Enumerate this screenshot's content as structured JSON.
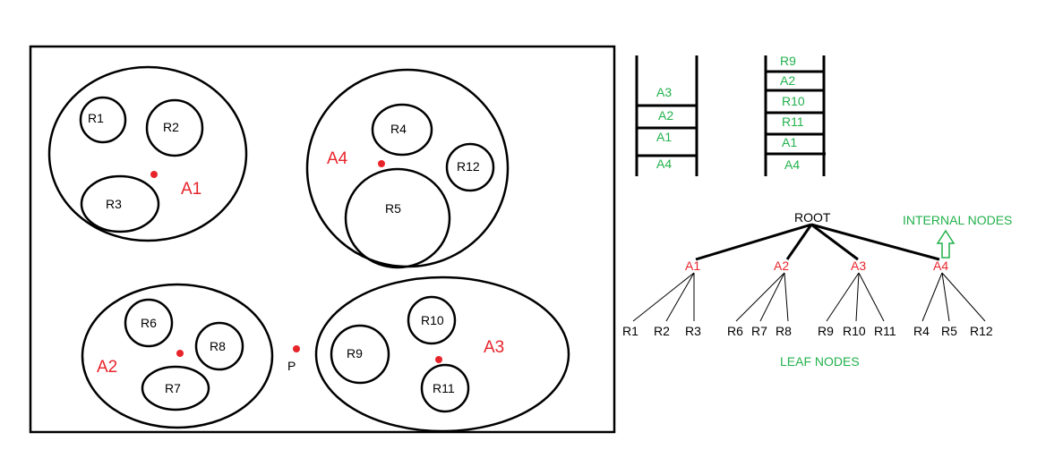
{
  "regions": {
    "r1": "R1",
    "r2": "R2",
    "r3": "R3",
    "r4": "R4",
    "r5": "R5",
    "r6": "R6",
    "r7": "R7",
    "r8": "R8",
    "r9": "R9",
    "r10": "R10",
    "r11": "R11",
    "r12": "R12"
  },
  "areas": {
    "a1": "A1",
    "a2": "A2",
    "a3": "A3",
    "a4": "A4"
  },
  "point": "P",
  "stack1": [
    "A3",
    "A2",
    "A1",
    "A4"
  ],
  "stack2": [
    "R9",
    "A2",
    "R10",
    "R11",
    "A1",
    "A4"
  ],
  "tree": {
    "root": "ROOT",
    "internal": [
      "A1",
      "A2",
      "A3",
      "A4"
    ],
    "leaves": [
      "R1",
      "R2",
      "R3",
      "R6",
      "R7",
      "R8",
      "R9",
      "R10",
      "R11",
      "R4",
      "R5",
      "R12"
    ],
    "internal_label": "INTERNAL NODES",
    "leaf_label": "LEAF NODES"
  },
  "colors": {
    "red": "#e8242b",
    "green": "#22b14c",
    "stroke": "#000000"
  }
}
